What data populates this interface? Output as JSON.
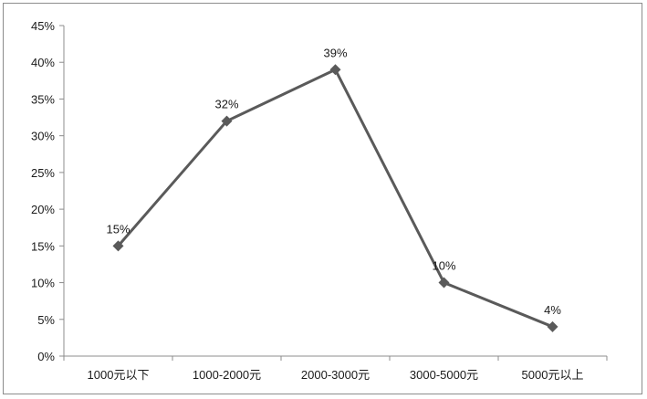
{
  "chart_data": {
    "type": "line",
    "title": "",
    "xlabel": "",
    "ylabel": "",
    "categories": [
      "1000元以下",
      "1000-2000元",
      "2000-3000元",
      "3000-5000元",
      "5000元以上"
    ],
    "series": [
      {
        "values": [
          15,
          32,
          39,
          10,
          4
        ],
        "color": "#5a5a5a",
        "marker": "diamond"
      }
    ],
    "data_labels": [
      "15%",
      "32%",
      "39%",
      "10%",
      "4%"
    ],
    "ylim": [
      0,
      45
    ],
    "y_ticks": [
      0,
      5,
      10,
      15,
      20,
      25,
      30,
      35,
      40,
      45
    ],
    "y_tick_labels": [
      "0%",
      "5%",
      "10%",
      "15%",
      "20%",
      "25%",
      "30%",
      "35%",
      "40%",
      "45%"
    ],
    "grid": false,
    "legend": "none"
  }
}
